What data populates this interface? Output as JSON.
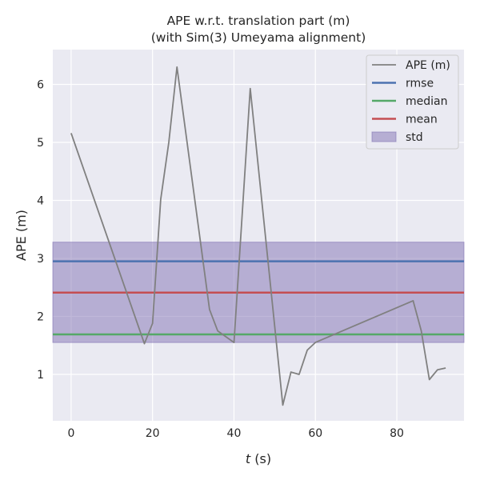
{
  "chart_data": {
    "type": "line",
    "title_line1": "APE w.r.t. translation part (m)",
    "title_line2": "(with Sim(3) Umeyama alignment)",
    "xlabel_var": "t",
    "xlabel_unit": " (s)",
    "ylabel": "APE (m)",
    "xlim": [
      -4.5,
      96.5
    ],
    "ylim": [
      0.2,
      6.6
    ],
    "xticks": [
      0,
      20,
      40,
      60,
      80
    ],
    "yticks": [
      1,
      2,
      3,
      4,
      5,
      6
    ],
    "grid": true,
    "legend_position": "top-right",
    "series": [
      {
        "name": "APE (m)",
        "color": "#808080",
        "x": [
          0,
          18,
          20,
          22,
          24,
          26,
          34,
          36,
          40,
          44,
          52,
          54,
          56,
          58,
          60,
          84,
          86,
          88,
          90,
          92
        ],
        "y": [
          5.16,
          1.53,
          1.88,
          4.02,
          5.0,
          6.3,
          2.12,
          1.75,
          1.55,
          5.93,
          0.47,
          1.04,
          1.0,
          1.42,
          1.55,
          2.27,
          1.75,
          0.91,
          1.08,
          1.11
        ]
      }
    ],
    "stats": {
      "rmse": {
        "name": "rmse",
        "value": 2.95,
        "color": "#4c72b0"
      },
      "median": {
        "name": "median",
        "value": 1.69,
        "color": "#55a868"
      },
      "mean": {
        "name": "mean",
        "value": 2.41,
        "color": "#c44e52"
      },
      "std": {
        "name": "std",
        "lower": 1.55,
        "upper": 3.28,
        "color": "#8172b3"
      }
    }
  }
}
